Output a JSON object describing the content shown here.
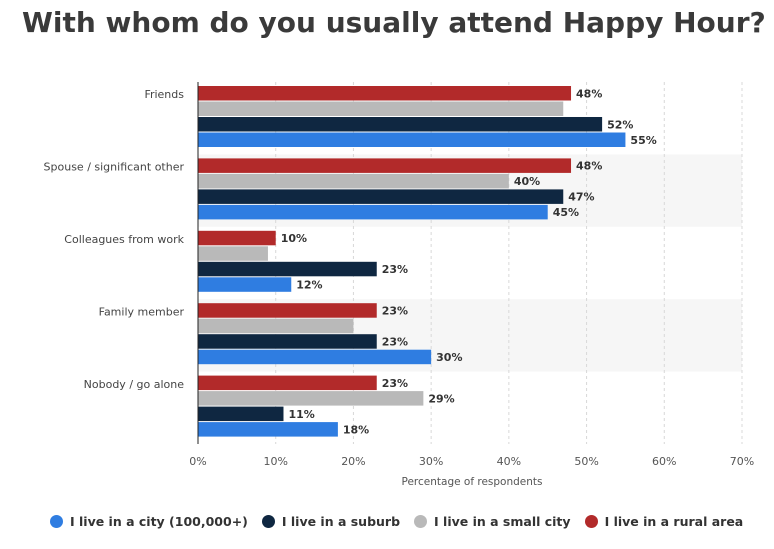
{
  "chart_data": {
    "type": "bar",
    "orientation": "horizontal",
    "title": "With whom do you usually attend Happy Hour?",
    "xlabel": "Percentage of respondents",
    "ylabel": "",
    "xlim": [
      0,
      70
    ],
    "xticks": [
      0,
      10,
      20,
      30,
      40,
      50,
      60,
      70
    ],
    "tick_format": "{v}%",
    "categories": [
      "Friends",
      "Spouse / significant other",
      "Colleagues from work",
      "Family member",
      "Nobody / go alone"
    ],
    "series": [
      {
        "name": "I live in a rural area",
        "color": "#b22a2a",
        "values": [
          48,
          48,
          10,
          23,
          23
        ],
        "labels_shown": [
          true,
          true,
          true,
          true,
          true
        ]
      },
      {
        "name": "I live in a small city",
        "color": "#b9b9b9",
        "values": [
          47,
          40,
          9,
          20,
          29
        ],
        "labels_shown": [
          false,
          true,
          false,
          false,
          true
        ]
      },
      {
        "name": "I live in a suburb",
        "color": "#0f2741",
        "values": [
          52,
          47,
          23,
          23,
          11
        ],
        "labels_shown": [
          true,
          true,
          true,
          true,
          true
        ]
      },
      {
        "name": "I live in a city (100,000+)",
        "color": "#2f7de1",
        "values": [
          55,
          45,
          12,
          30,
          18
        ],
        "labels_shown": [
          true,
          true,
          true,
          true,
          true
        ]
      }
    ],
    "legend_order": [
      "I live in a city (100,000+)",
      "I live in a suburb",
      "I live in a small city",
      "I live in a rural area"
    ],
    "legend_position": "bottom",
    "grid": true
  }
}
